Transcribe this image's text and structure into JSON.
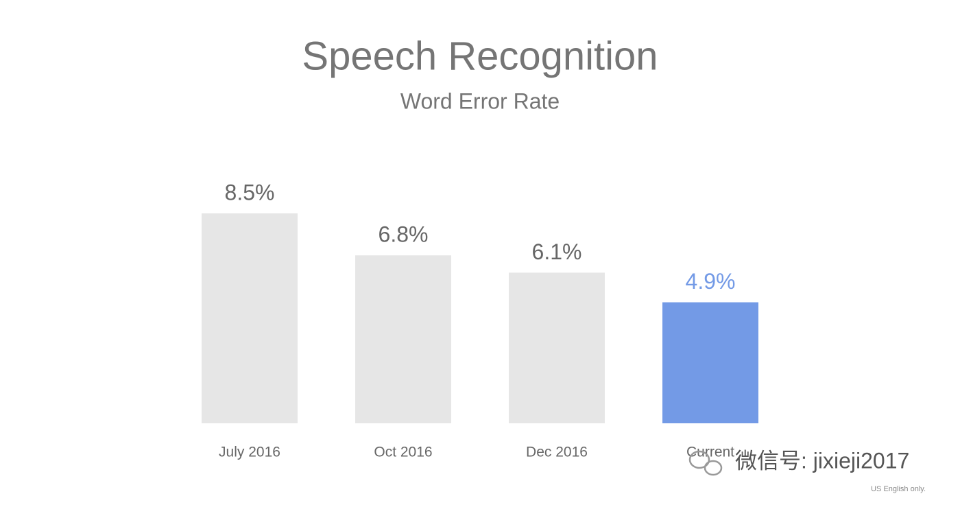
{
  "chart_data": {
    "type": "bar",
    "title": "Speech Recognition",
    "subtitle": "Word Error Rate",
    "categories": [
      "July 2016",
      "Oct 2016",
      "Dec 2016",
      "Current"
    ],
    "values": [
      8.5,
      6.8,
      6.1,
      4.9
    ],
    "value_labels": [
      "8.5%",
      "6.8%",
      "6.1%",
      "4.9%"
    ],
    "colors": [
      "#e6e6e6",
      "#e6e6e6",
      "#e6e6e6",
      "#739ae6"
    ],
    "value_label_colors": [
      "#666666",
      "#666666",
      "#666666",
      "#739ae6"
    ],
    "footnote": "US English only.",
    "watermark": "微信号: jixieji2017"
  }
}
